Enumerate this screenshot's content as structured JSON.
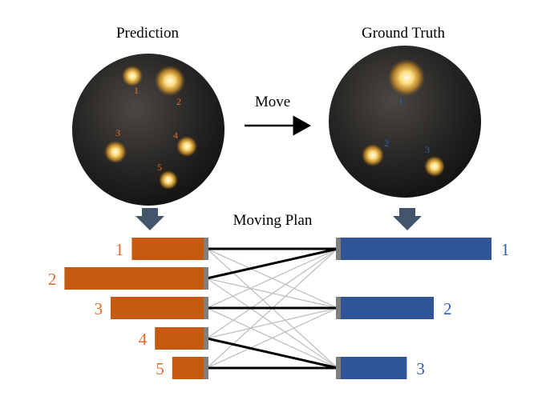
{
  "titles": {
    "prediction": "Prediction",
    "ground_truth": "Ground Truth",
    "move": "Move",
    "moving_plan": "Moving Plan"
  },
  "colors": {
    "prediction": "#c55a11",
    "ground_truth": "#2f5597",
    "label_orange": "#e46c2a",
    "label_blue": "#2f5fb3",
    "sphere": "#1e1d1c",
    "down_arrow": "#44546a",
    "strong_link": "#000000",
    "weak_link": "#c0c0c0"
  },
  "prediction_lights": [
    {
      "label": "1"
    },
    {
      "label": "2"
    },
    {
      "label": "3"
    },
    {
      "label": "4"
    },
    {
      "label": "5"
    }
  ],
  "ground_truth_lights": [
    {
      "label": "1"
    },
    {
      "label": "2"
    },
    {
      "label": "3"
    }
  ],
  "prediction_bars": [
    {
      "label": "1",
      "value": 0.39
    },
    {
      "label": "2",
      "value": 0.74
    },
    {
      "label": "3",
      "value": 0.5
    },
    {
      "label": "4",
      "value": 0.27
    },
    {
      "label": "5",
      "value": 0.18
    }
  ],
  "ground_truth_bars": [
    {
      "label": "1",
      "value": 0.8
    },
    {
      "label": "2",
      "value": 0.5
    },
    {
      "label": "3",
      "value": 0.36
    }
  ],
  "strong_matches": [
    [
      0,
      0
    ],
    [
      1,
      0
    ],
    [
      2,
      1
    ],
    [
      3,
      2
    ],
    [
      4,
      2
    ]
  ]
}
